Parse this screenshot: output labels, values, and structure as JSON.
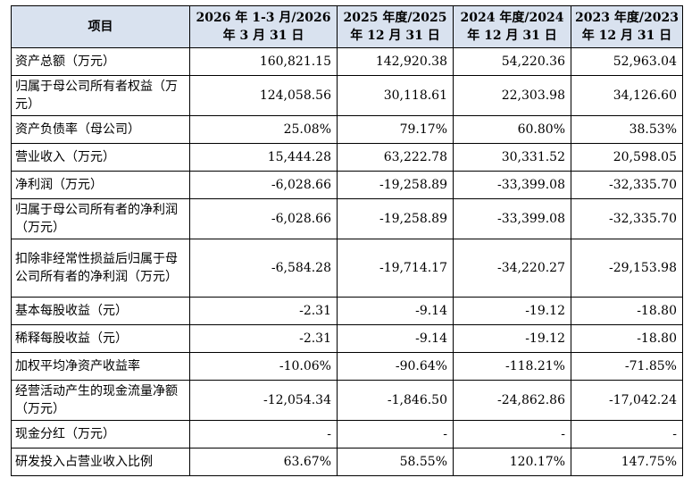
{
  "headers": [
    "项目",
    "2026 年 1-3 月/2026\n年 3 月 31 日",
    "2025 年度/2025\n年 12 月 31 日",
    "2024 年度/2024\n年 12 月 31 日",
    "2023 年度/2023\n年 12 月 31 日"
  ],
  "rows": [
    {
      "label": "资产总额（万元）",
      "values": [
        "160,821.15",
        "142,920.38",
        "54,220.36",
        "52,963.04"
      ]
    },
    {
      "label": "归属于母公司所有者权益（万元）",
      "values": [
        "124,058.56",
        "30,118.61",
        "22,303.98",
        "34,126.60"
      ]
    },
    {
      "label": "资产负债率（母公司）",
      "values": [
        "25.08%",
        "79.17%",
        "60.80%",
        "38.53%"
      ]
    },
    {
      "label": "营业收入（万元）",
      "values": [
        "15,444.28",
        "63,222.78",
        "30,331.52",
        "20,598.05"
      ]
    },
    {
      "label": "净利润（万元）",
      "values": [
        "-6,028.66",
        "-19,258.89",
        "-33,399.08",
        "-32,335.70"
      ]
    },
    {
      "label": "归属于母公司所有者的净利润（万元）",
      "values": [
        "-6,028.66",
        "-19,258.89",
        "-33,399.08",
        "-32,335.70"
      ]
    },
    {
      "label": "扣除非经常性损益后归属于母公司所有者的净利润（万元）",
      "values": [
        "-6,584.28",
        "-19,714.17",
        "-34,220.27",
        "-29,153.98"
      ]
    },
    {
      "label": "基本每股收益（元）",
      "values": [
        "-2.31",
        "-9.14",
        "-19.12",
        "-18.80"
      ]
    },
    {
      "label": "稀释每股收益（元）",
      "values": [
        "-2.31",
        "-9.14",
        "-19.12",
        "-18.80"
      ]
    },
    {
      "label": "加权平均净资产收益率",
      "values": [
        "-10.06%",
        "-90.64%",
        "-118.21%",
        "-71.85%"
      ]
    },
    {
      "label": "经营活动产生的现金流量净额（万元）",
      "values": [
        "-12,054.34",
        "-1,846.50",
        "-24,862.86",
        "-17,042.24"
      ]
    },
    {
      "label": "现金分红（万元）",
      "values": [
        "-",
        "-",
        "-",
        "-"
      ]
    },
    {
      "label": "研发投入占营业收入比例",
      "values": [
        "63.67%",
        "58.55%",
        "120.17%",
        "147.75%"
      ]
    }
  ]
}
